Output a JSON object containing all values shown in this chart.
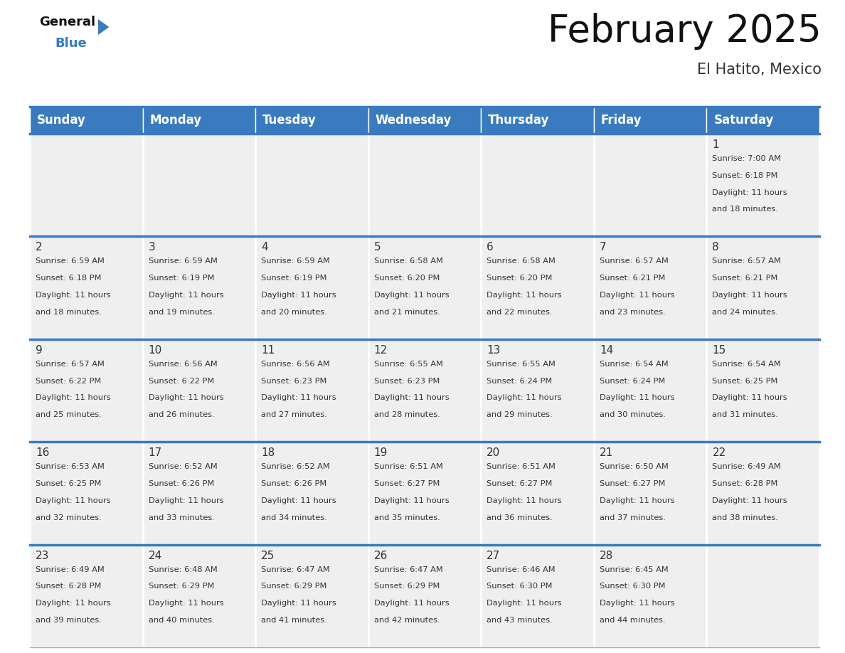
{
  "title": "February 2025",
  "subtitle": "El Hatito, Mexico",
  "header_color": "#3a7bbf",
  "header_text_color": "#ffffff",
  "bg_color": "#ffffff",
  "cell_bg_color": "#efefef",
  "separator_color": "#ffffff",
  "border_color": "#3a7bbf",
  "text_color": "#333333",
  "day_names": [
    "Sunday",
    "Monday",
    "Tuesday",
    "Wednesday",
    "Thursday",
    "Friday",
    "Saturday"
  ],
  "title_fontsize": 38,
  "subtitle_fontsize": 15,
  "header_fontsize": 12,
  "day_num_fontsize": 11,
  "cell_text_fontsize": 8.2,
  "days": [
    {
      "day": 1,
      "col": 6,
      "row": 0,
      "sunrise": "7:00 AM",
      "sunset": "6:18 PM",
      "daylight_hours": 11,
      "daylight_minutes": 18
    },
    {
      "day": 2,
      "col": 0,
      "row": 1,
      "sunrise": "6:59 AM",
      "sunset": "6:18 PM",
      "daylight_hours": 11,
      "daylight_minutes": 18
    },
    {
      "day": 3,
      "col": 1,
      "row": 1,
      "sunrise": "6:59 AM",
      "sunset": "6:19 PM",
      "daylight_hours": 11,
      "daylight_minutes": 19
    },
    {
      "day": 4,
      "col": 2,
      "row": 1,
      "sunrise": "6:59 AM",
      "sunset": "6:19 PM",
      "daylight_hours": 11,
      "daylight_minutes": 20
    },
    {
      "day": 5,
      "col": 3,
      "row": 1,
      "sunrise": "6:58 AM",
      "sunset": "6:20 PM",
      "daylight_hours": 11,
      "daylight_minutes": 21
    },
    {
      "day": 6,
      "col": 4,
      "row": 1,
      "sunrise": "6:58 AM",
      "sunset": "6:20 PM",
      "daylight_hours": 11,
      "daylight_minutes": 22
    },
    {
      "day": 7,
      "col": 5,
      "row": 1,
      "sunrise": "6:57 AM",
      "sunset": "6:21 PM",
      "daylight_hours": 11,
      "daylight_minutes": 23
    },
    {
      "day": 8,
      "col": 6,
      "row": 1,
      "sunrise": "6:57 AM",
      "sunset": "6:21 PM",
      "daylight_hours": 11,
      "daylight_minutes": 24
    },
    {
      "day": 9,
      "col": 0,
      "row": 2,
      "sunrise": "6:57 AM",
      "sunset": "6:22 PM",
      "daylight_hours": 11,
      "daylight_minutes": 25
    },
    {
      "day": 10,
      "col": 1,
      "row": 2,
      "sunrise": "6:56 AM",
      "sunset": "6:22 PM",
      "daylight_hours": 11,
      "daylight_minutes": 26
    },
    {
      "day": 11,
      "col": 2,
      "row": 2,
      "sunrise": "6:56 AM",
      "sunset": "6:23 PM",
      "daylight_hours": 11,
      "daylight_minutes": 27
    },
    {
      "day": 12,
      "col": 3,
      "row": 2,
      "sunrise": "6:55 AM",
      "sunset": "6:23 PM",
      "daylight_hours": 11,
      "daylight_minutes": 28
    },
    {
      "day": 13,
      "col": 4,
      "row": 2,
      "sunrise": "6:55 AM",
      "sunset": "6:24 PM",
      "daylight_hours": 11,
      "daylight_minutes": 29
    },
    {
      "day": 14,
      "col": 5,
      "row": 2,
      "sunrise": "6:54 AM",
      "sunset": "6:24 PM",
      "daylight_hours": 11,
      "daylight_minutes": 30
    },
    {
      "day": 15,
      "col": 6,
      "row": 2,
      "sunrise": "6:54 AM",
      "sunset": "6:25 PM",
      "daylight_hours": 11,
      "daylight_minutes": 31
    },
    {
      "day": 16,
      "col": 0,
      "row": 3,
      "sunrise": "6:53 AM",
      "sunset": "6:25 PM",
      "daylight_hours": 11,
      "daylight_minutes": 32
    },
    {
      "day": 17,
      "col": 1,
      "row": 3,
      "sunrise": "6:52 AM",
      "sunset": "6:26 PM",
      "daylight_hours": 11,
      "daylight_minutes": 33
    },
    {
      "day": 18,
      "col": 2,
      "row": 3,
      "sunrise": "6:52 AM",
      "sunset": "6:26 PM",
      "daylight_hours": 11,
      "daylight_minutes": 34
    },
    {
      "day": 19,
      "col": 3,
      "row": 3,
      "sunrise": "6:51 AM",
      "sunset": "6:27 PM",
      "daylight_hours": 11,
      "daylight_minutes": 35
    },
    {
      "day": 20,
      "col": 4,
      "row": 3,
      "sunrise": "6:51 AM",
      "sunset": "6:27 PM",
      "daylight_hours": 11,
      "daylight_minutes": 36
    },
    {
      "day": 21,
      "col": 5,
      "row": 3,
      "sunrise": "6:50 AM",
      "sunset": "6:27 PM",
      "daylight_hours": 11,
      "daylight_minutes": 37
    },
    {
      "day": 22,
      "col": 6,
      "row": 3,
      "sunrise": "6:49 AM",
      "sunset": "6:28 PM",
      "daylight_hours": 11,
      "daylight_minutes": 38
    },
    {
      "day": 23,
      "col": 0,
      "row": 4,
      "sunrise": "6:49 AM",
      "sunset": "6:28 PM",
      "daylight_hours": 11,
      "daylight_minutes": 39
    },
    {
      "day": 24,
      "col": 1,
      "row": 4,
      "sunrise": "6:48 AM",
      "sunset": "6:29 PM",
      "daylight_hours": 11,
      "daylight_minutes": 40
    },
    {
      "day": 25,
      "col": 2,
      "row": 4,
      "sunrise": "6:47 AM",
      "sunset": "6:29 PM",
      "daylight_hours": 11,
      "daylight_minutes": 41
    },
    {
      "day": 26,
      "col": 3,
      "row": 4,
      "sunrise": "6:47 AM",
      "sunset": "6:29 PM",
      "daylight_hours": 11,
      "daylight_minutes": 42
    },
    {
      "day": 27,
      "col": 4,
      "row": 4,
      "sunrise": "6:46 AM",
      "sunset": "6:30 PM",
      "daylight_hours": 11,
      "daylight_minutes": 43
    },
    {
      "day": 28,
      "col": 5,
      "row": 4,
      "sunrise": "6:45 AM",
      "sunset": "6:30 PM",
      "daylight_hours": 11,
      "daylight_minutes": 44
    }
  ]
}
